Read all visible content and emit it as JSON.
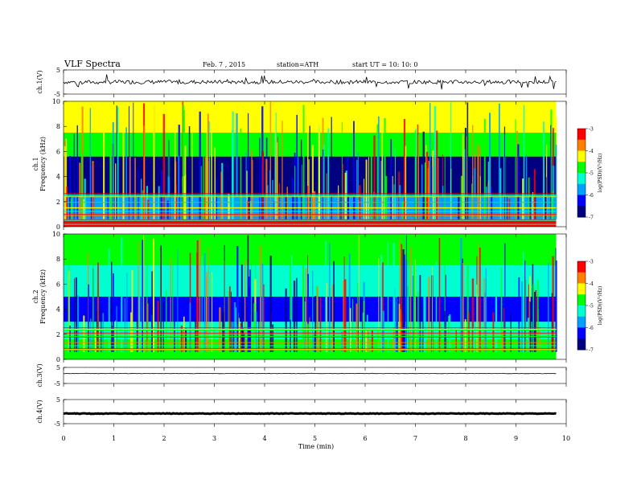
{
  "header": {
    "title": "VLF  Spectra",
    "date": "Feb. 7  , 2015",
    "station": "station=ATH",
    "start": "start  UT  =    10: 10: 0"
  },
  "chart_data": [
    {
      "type": "line",
      "panel": "ch1-waveform",
      "ylabel": "ch.1(V)",
      "ylim": [
        -5,
        5
      ],
      "yticks": [
        "5",
        "-5"
      ],
      "series": [
        {
          "x": [
            0,
            9.8
          ],
          "y": [
            0,
            0
          ]
        }
      ]
    },
    {
      "type": "heatmap",
      "panel": "ch1-spectrogram",
      "ylabel_top": "ch.1",
      "ylabel": "Frequency  (kHz)",
      "ylim": [
        0,
        10
      ],
      "yticks": [
        "0",
        "2",
        "4",
        "6",
        "8",
        "10"
      ],
      "colorbar": {
        "label": "log(PSD)(V²/Hz)",
        "ticks": [
          "-3",
          "-4",
          "-5",
          "-6",
          "-7"
        ],
        "range": [
          -7,
          -3
        ]
      },
      "bands": [
        {
          "f_from": 0,
          "f_to": 0.6,
          "level": -3.4
        },
        {
          "f_from": 0.6,
          "f_to": 2.4,
          "level": -5.8
        },
        {
          "f_from": 2.4,
          "f_to": 5.6,
          "level": -6.6
        },
        {
          "f_from": 5.6,
          "f_to": 7.5,
          "level": -5.0
        },
        {
          "f_from": 7.5,
          "f_to": 10,
          "level": -4.2
        }
      ]
    },
    {
      "type": "heatmap",
      "panel": "ch2-spectrogram",
      "ylabel_top": "ch.2",
      "ylabel": "Frequency  (kHz)",
      "ylim": [
        0,
        10
      ],
      "yticks": [
        "0",
        "2",
        "4",
        "6",
        "8",
        "10"
      ],
      "colorbar": {
        "label": "log(PSD)(V²/Hz)",
        "ticks": [
          "-3",
          "-4",
          "-5",
          "-6",
          "-7"
        ],
        "range": [
          -7,
          -3
        ]
      },
      "bands": [
        {
          "f_from": 0,
          "f_to": 1.6,
          "level": -4.6
        },
        {
          "f_from": 1.6,
          "f_to": 3.0,
          "level": -5.5
        },
        {
          "f_from": 3.0,
          "f_to": 5.0,
          "level": -6.3
        },
        {
          "f_from": 5.0,
          "f_to": 7.5,
          "level": -5.1
        },
        {
          "f_from": 7.5,
          "f_to": 10,
          "level": -4.6
        }
      ]
    },
    {
      "type": "line",
      "panel": "ch3-waveform",
      "ylabel": "ch.3(V)",
      "ylim": [
        -5,
        5
      ],
      "yticks": [
        "5",
        "-5"
      ],
      "series": [
        {
          "x": [
            0,
            9.8
          ],
          "y": [
            1.2,
            1.2
          ]
        }
      ]
    },
    {
      "type": "line",
      "panel": "ch4-waveform",
      "ylabel": "ch.4(V)",
      "ylim": [
        -5,
        5
      ],
      "yticks": [
        "5",
        "-5"
      ],
      "series": [
        {
          "x": [
            0,
            9.8
          ],
          "y": [
            -0.8,
            -0.8
          ]
        }
      ]
    }
  ],
  "xaxis": {
    "label": "Time  (min)",
    "range": [
      0,
      10
    ],
    "ticks": [
      "0",
      "1",
      "2",
      "3",
      "4",
      "5",
      "6",
      "7",
      "8",
      "9",
      "10"
    ]
  },
  "colors": {
    "scale": [
      "#000080",
      "#0000ff",
      "#00a0ff",
      "#00ffd0",
      "#00ff00",
      "#ffff00",
      "#ff8000",
      "#ff0000",
      "#ffffff"
    ]
  }
}
